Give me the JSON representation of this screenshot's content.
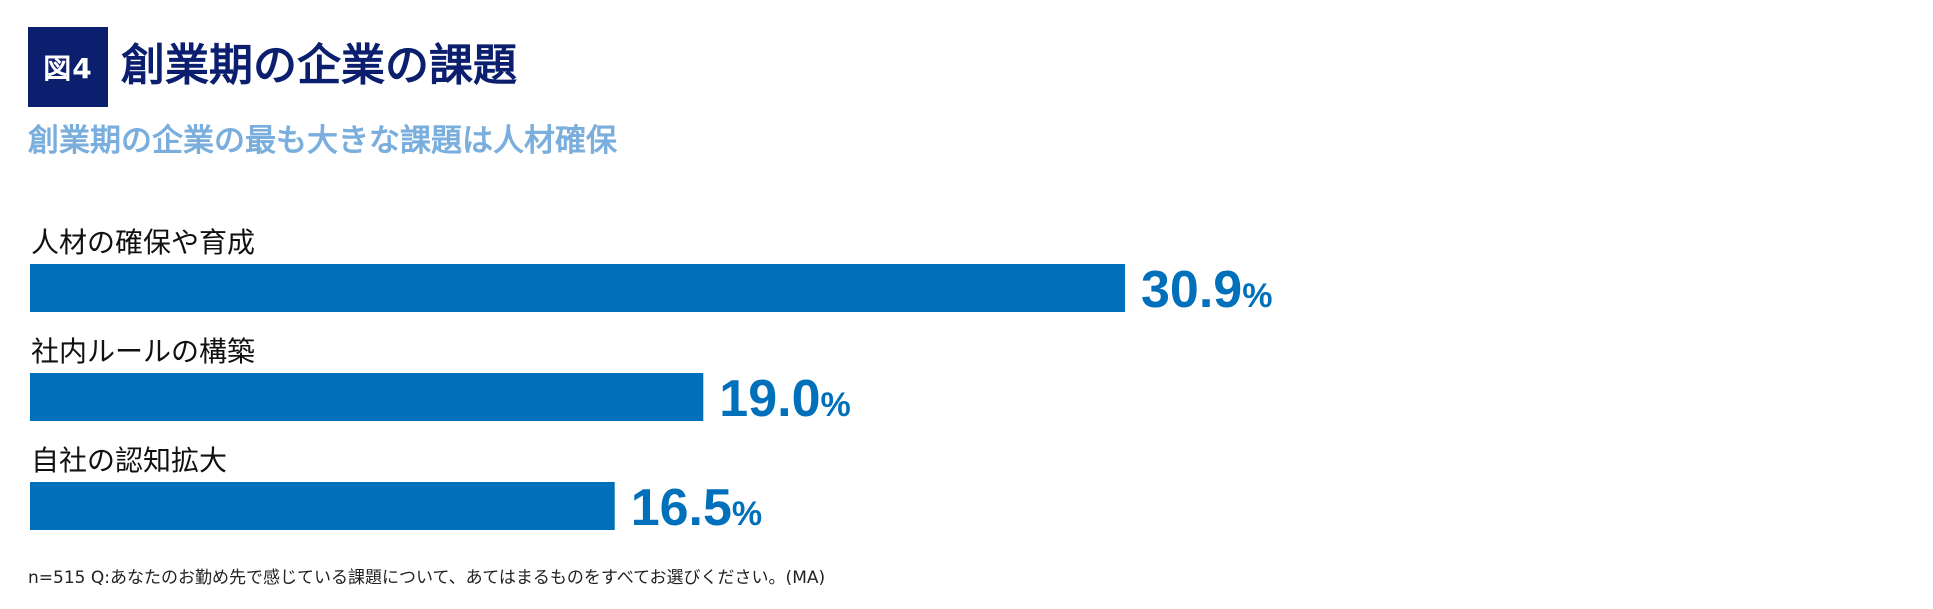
{
  "figure": {
    "badge": "図4",
    "title": "創業期の企業の課題",
    "subtitle": "創業期の企業の最も大きな課題は人材確保",
    "footnote": "n=515 Q:あなたのお勤め先で感じている課題について、あてはまるものをすべてお選びください。(MA)"
  },
  "colors": {
    "badge_bg": "#0b1f6e",
    "title": "#0b1f6e",
    "subtitle": "#7aaedc",
    "bar": "#0070bb",
    "value_label": "#0070bb"
  },
  "chart_data": {
    "type": "bar",
    "orientation": "horizontal",
    "categories": [
      "人材の確保や育成",
      "社内ルールの構築",
      "自社の認知拡大"
    ],
    "values": [
      30.9,
      19.0,
      16.5
    ],
    "value_labels": [
      "30.9",
      "19.0",
      "16.5"
    ],
    "unit": "%",
    "title": "創業期の企業の課題",
    "subtitle": "創業期の企業の最も大きな課題は人材確保",
    "xlabel": "",
    "ylabel": "",
    "xlim": [
      0,
      30.9
    ],
    "grid": false,
    "legend": "none"
  }
}
